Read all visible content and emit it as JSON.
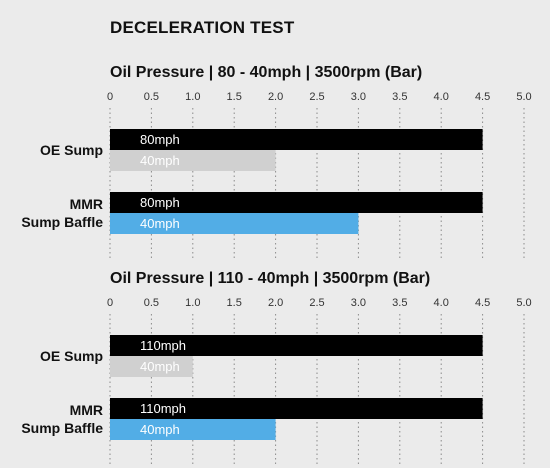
{
  "title": "DECELERATION TEST",
  "colors": {
    "background": "#ebebeb",
    "bar_80_110": "#000000",
    "bar_40_oe": "#d0d0d0",
    "bar_40_mmr": "#52ade6",
    "grid": "#8a8a8a",
    "bar_text": "#ffffff"
  },
  "chart_data": [
    {
      "type": "bar",
      "orientation": "horizontal",
      "title": "Oil Pressure | 80 - 40mph | 3500rpm (Bar)",
      "xlim": [
        0,
        5
      ],
      "ticks": [
        "0",
        "0.5",
        "1.0",
        "1.5",
        "2.0",
        "2.5",
        "3.0",
        "3.5",
        "4.0",
        "4.5",
        "5.0"
      ],
      "grid": "vertical-dotted",
      "categories": [
        {
          "label_lines": [
            "OE Sump"
          ],
          "bars": [
            {
              "label": "80mph",
              "value": 4.5,
              "color": "#000000"
            },
            {
              "label": "40mph",
              "value": 2.0,
              "color": "#d0d0d0"
            }
          ]
        },
        {
          "label_lines": [
            "MMR",
            "Sump Baffle"
          ],
          "bars": [
            {
              "label": "80mph",
              "value": 4.5,
              "color": "#000000"
            },
            {
              "label": "40mph",
              "value": 3.0,
              "color": "#52ade6"
            }
          ]
        }
      ]
    },
    {
      "type": "bar",
      "orientation": "horizontal",
      "title": "Oil Pressure | 110 - 40mph | 3500rpm (Bar)",
      "xlim": [
        0,
        5
      ],
      "ticks": [
        "0",
        "0.5",
        "1.0",
        "1.5",
        "2.0",
        "2.5",
        "3.0",
        "3.5",
        "4.0",
        "4.5",
        "5.0"
      ],
      "grid": "vertical-dotted",
      "categories": [
        {
          "label_lines": [
            "OE Sump"
          ],
          "bars": [
            {
              "label": "110mph",
              "value": 4.5,
              "color": "#000000"
            },
            {
              "label": "40mph",
              "value": 1.0,
              "color": "#d0d0d0"
            }
          ]
        },
        {
          "label_lines": [
            "MMR",
            "Sump Baffle"
          ],
          "bars": [
            {
              "label": "110mph",
              "value": 4.5,
              "color": "#000000"
            },
            {
              "label": "40mph",
              "value": 2.0,
              "color": "#52ade6"
            }
          ]
        }
      ]
    }
  ]
}
